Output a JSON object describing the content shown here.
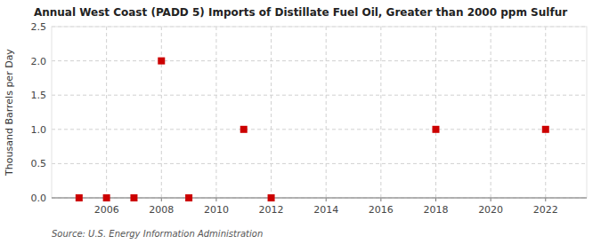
{
  "chart_data": {
    "type": "scatter",
    "title": "Annual West Coast (PADD 5) Imports of Distillate Fuel Oil, Greater than 2000 ppm Sulfur",
    "y_label": "Thousand Barrels per Day",
    "annotations": [
      "Source: U.S. Energy Information Administration"
    ],
    "x": [
      2005,
      2006,
      2007,
      2008,
      2009,
      2011,
      2012,
      2018,
      2022
    ],
    "values": [
      0.0,
      0.0,
      0.0,
      2.0,
      0.0,
      1.0,
      0.0,
      1.0,
      1.0
    ],
    "color": "#cc0000",
    "marker": "square",
    "xlim": [
      2004.0,
      2023.5
    ],
    "ylim": [
      0.0,
      2.5
    ],
    "xticks": [
      2006,
      2008,
      2010,
      2012,
      2014,
      2016,
      2018,
      2020,
      2022
    ],
    "yticks": [
      {
        "value": 0.0,
        "label": "0.0"
      },
      0.5,
      {
        "value": 1.0,
        "label": "1.0"
      },
      1.5,
      {
        "value": 2.0,
        "label": "2.0"
      },
      2.5
    ],
    "grid": true
  }
}
